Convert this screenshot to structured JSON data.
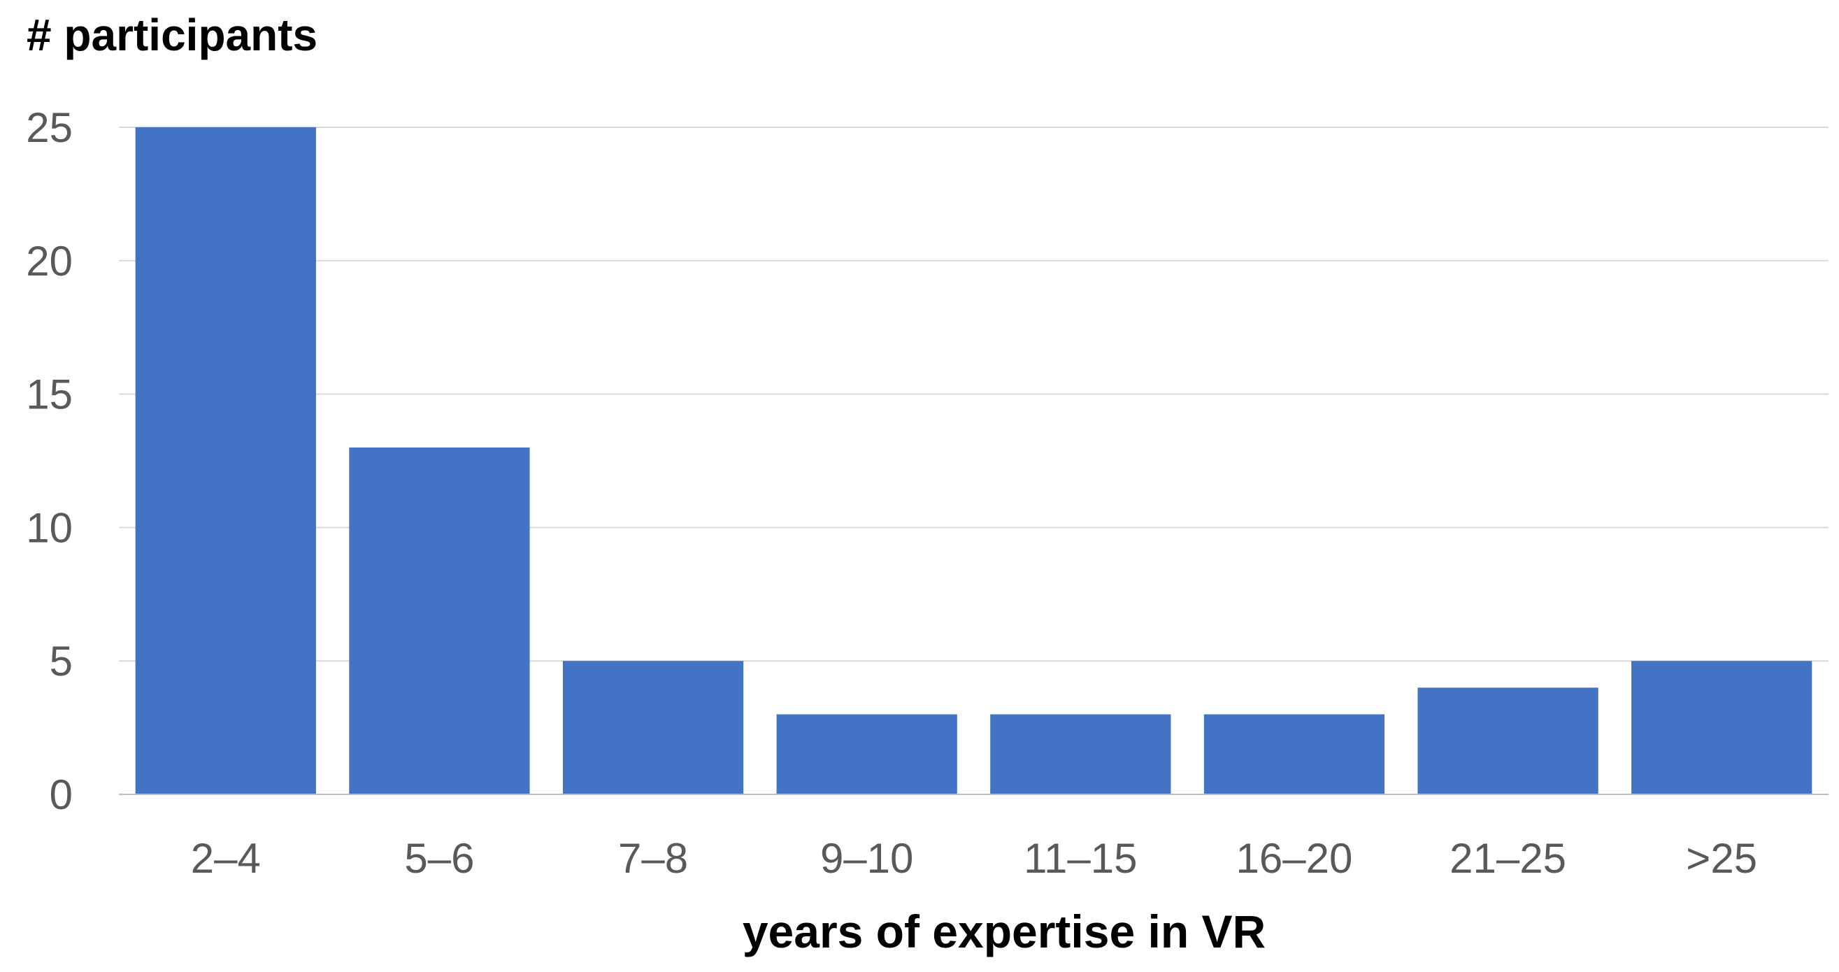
{
  "chart_data": {
    "type": "bar",
    "title": "",
    "ylabel": "# participants",
    "xlabel": "years of expertise in VR",
    "categories": [
      "2–4",
      "5–6",
      "7–8",
      "9–10",
      "11–15",
      "16–20",
      "21–25",
      ">25"
    ],
    "values": [
      25,
      13,
      5,
      3,
      3,
      3,
      4,
      5
    ],
    "ylim": [
      0,
      25
    ],
    "yticks": [
      0,
      5,
      10,
      15,
      20,
      25
    ],
    "grid": true,
    "legend": "none"
  },
  "colors": {
    "bar": "#4472C4",
    "grid": "#D9D9D9",
    "axis": "#BFBFBF",
    "tick_text": "#595959",
    "label_text": "#000000"
  }
}
